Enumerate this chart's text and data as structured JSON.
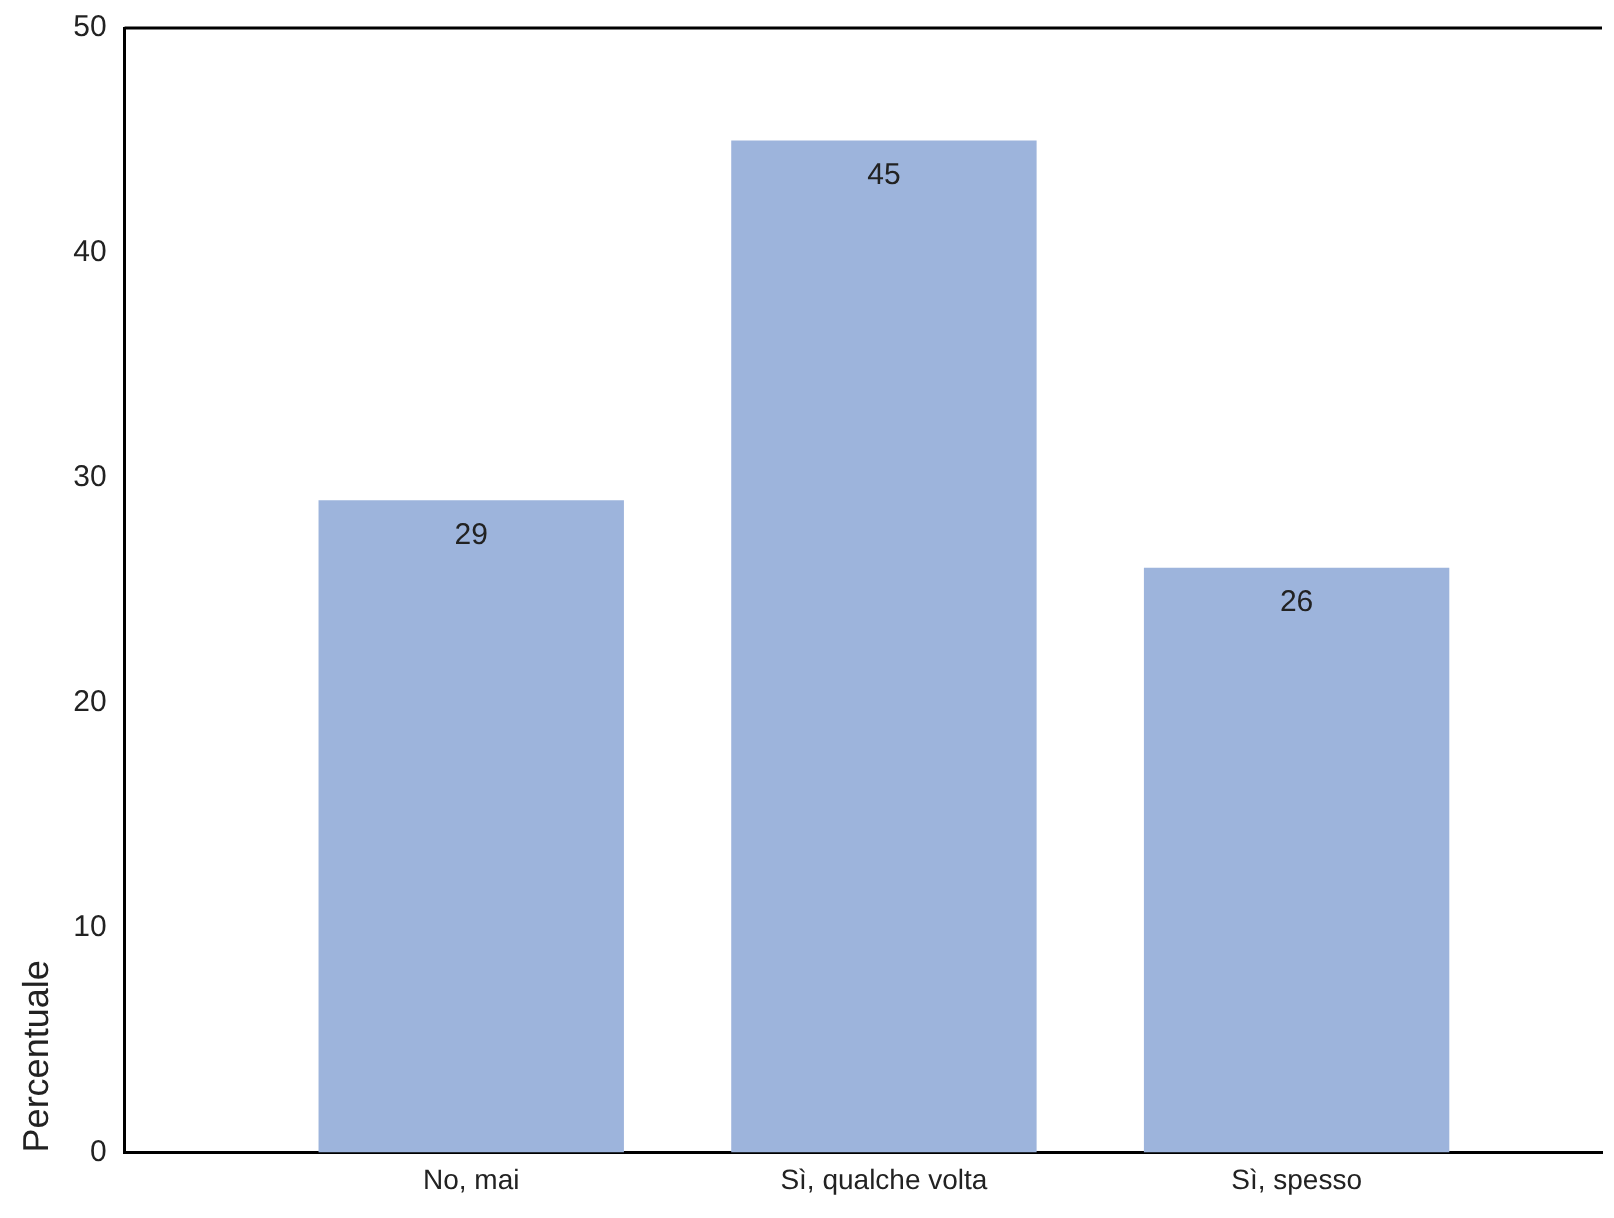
{
  "chart_data": {
    "type": "bar",
    "ylabel": "Percentuale",
    "categories": [
      "No, mai",
      "Sì, qualche volta",
      "Sì, spesso"
    ],
    "values": [
      29,
      45,
      26
    ],
    "color": "#9db4dc",
    "ylim": [
      0,
      50
    ],
    "yticks": [
      0,
      10,
      20,
      30,
      40,
      50
    ],
    "grid": false,
    "legend": false,
    "data_labels": true
  }
}
